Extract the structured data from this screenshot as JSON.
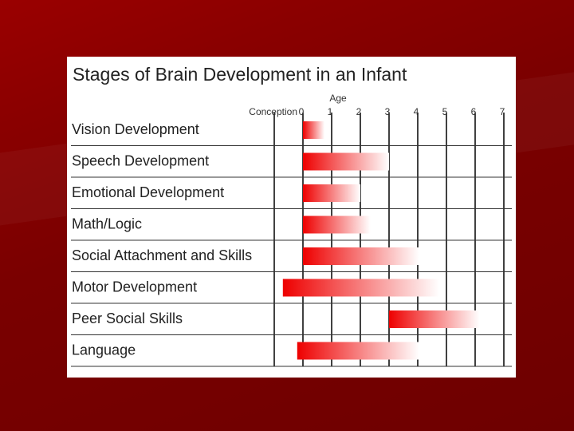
{
  "chart_data": {
    "type": "bar",
    "title": "Stages of Brain Development  in an Infant",
    "xlabel": "Age",
    "x_ticks": [
      "Conception",
      "0",
      "1",
      "2",
      "3",
      "4",
      "5",
      "6",
      "7"
    ],
    "categories": [
      "Vision Development",
      "Speech Development",
      "Emotional Development",
      "Math/Logic",
      "Social Attachment and Skills",
      "Motor Development",
      "Peer Social Skills",
      "Language"
    ],
    "series": [
      {
        "ranges": [
          [
            0,
            0.75
          ],
          [
            0,
            3
          ],
          [
            0,
            2
          ],
          [
            0,
            2.35
          ],
          [
            0,
            4.05
          ],
          [
            -0.7,
            4.75
          ],
          [
            3,
            6.15
          ],
          [
            -0.2,
            4.05
          ]
        ]
      }
    ],
    "xlim": [
      -1,
      7
    ],
    "grid": true
  },
  "colors": {
    "bar_start": "#ee0000",
    "bar_end": "#ffffff",
    "background": "#7d0000"
  }
}
